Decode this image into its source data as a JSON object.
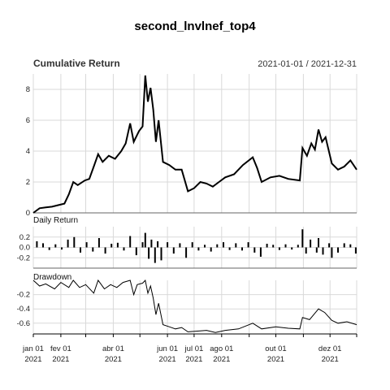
{
  "chart_data": {
    "type": "line",
    "title": "second_lnvlnef_top4",
    "date_range": "2021-01-01 / 2021-12-31",
    "panels": [
      {
        "name": "Cumulative Return",
        "type": "line",
        "ylim": [
          0,
          9
        ],
        "yticks": [
          0,
          2,
          4,
          6,
          8
        ],
        "points": [
          [
            "2021-01-01",
            0.0
          ],
          [
            "2021-01-08",
            0.3
          ],
          [
            "2021-01-15",
            0.35
          ],
          [
            "2021-01-22",
            0.4
          ],
          [
            "2021-01-29",
            0.5
          ],
          [
            "2021-02-05",
            0.6
          ],
          [
            "2021-02-10",
            1.2
          ],
          [
            "2021-02-15",
            2.0
          ],
          [
            "2021-02-20",
            1.8
          ],
          [
            "2021-02-28",
            2.1
          ],
          [
            "2021-03-05",
            2.2
          ],
          [
            "2021-03-10",
            3.0
          ],
          [
            "2021-03-15",
            3.8
          ],
          [
            "2021-03-20",
            3.3
          ],
          [
            "2021-03-27",
            3.7
          ],
          [
            "2021-04-03",
            3.5
          ],
          [
            "2021-04-10",
            4.0
          ],
          [
            "2021-04-15",
            4.5
          ],
          [
            "2021-04-20",
            5.8
          ],
          [
            "2021-04-24",
            4.6
          ],
          [
            "2021-04-30",
            5.3
          ],
          [
            "2021-05-04",
            5.6
          ],
          [
            "2021-05-07",
            8.9
          ],
          [
            "2021-05-10",
            7.2
          ],
          [
            "2021-05-13",
            8.1
          ],
          [
            "2021-05-16",
            6.7
          ],
          [
            "2021-05-19",
            4.6
          ],
          [
            "2021-05-22",
            6.0
          ],
          [
            "2021-05-27",
            3.3
          ],
          [
            "2021-06-03",
            3.1
          ],
          [
            "2021-06-10",
            2.8
          ],
          [
            "2021-06-17",
            2.8
          ],
          [
            "2021-06-24",
            1.4
          ],
          [
            "2021-07-01",
            1.6
          ],
          [
            "2021-07-08",
            2.0
          ],
          [
            "2021-07-15",
            1.9
          ],
          [
            "2021-07-22",
            1.7
          ],
          [
            "2021-07-29",
            2.0
          ],
          [
            "2021-08-05",
            2.3
          ],
          [
            "2021-08-15",
            2.5
          ],
          [
            "2021-08-25",
            3.1
          ],
          [
            "2021-09-05",
            3.6
          ],
          [
            "2021-09-10",
            2.9
          ],
          [
            "2021-09-15",
            2.0
          ],
          [
            "2021-09-25",
            2.3
          ],
          [
            "2021-10-05",
            2.4
          ],
          [
            "2021-10-15",
            2.2
          ],
          [
            "2021-10-28",
            2.1
          ],
          [
            "2021-10-31",
            4.2
          ],
          [
            "2021-11-05",
            3.7
          ],
          [
            "2021-11-10",
            4.5
          ],
          [
            "2021-11-14",
            4.1
          ],
          [
            "2021-11-18",
            5.4
          ],
          [
            "2021-11-22",
            4.6
          ],
          [
            "2021-11-26",
            4.9
          ],
          [
            "2021-12-03",
            3.2
          ],
          [
            "2021-12-10",
            2.8
          ],
          [
            "2021-12-17",
            3.0
          ],
          [
            "2021-12-24",
            3.4
          ],
          [
            "2021-12-31",
            2.8
          ]
        ]
      },
      {
        "name": "Daily Return",
        "type": "bar",
        "ylim": [
          -0.4,
          0.4
        ],
        "yticks": [
          0.2,
          0.0,
          -0.2
        ],
        "ytick_labels": [
          "0.2",
          "0.0",
          "-0.2"
        ],
        "points": [
          [
            "2021-01-05",
            0.12
          ],
          [
            "2021-01-12",
            0.08
          ],
          [
            "2021-01-19",
            -0.05
          ],
          [
            "2021-01-26",
            0.06
          ],
          [
            "2021-02-02",
            -0.04
          ],
          [
            "2021-02-09",
            0.15
          ],
          [
            "2021-02-16",
            0.2
          ],
          [
            "2021-02-23",
            -0.1
          ],
          [
            "2021-03-02",
            0.1
          ],
          [
            "2021-03-09",
            -0.08
          ],
          [
            "2021-03-16",
            0.18
          ],
          [
            "2021-03-23",
            -0.12
          ],
          [
            "2021-03-30",
            0.07
          ],
          [
            "2021-04-06",
            0.09
          ],
          [
            "2021-04-13",
            -0.06
          ],
          [
            "2021-04-20",
            0.22
          ],
          [
            "2021-04-27",
            -0.15
          ],
          [
            "2021-05-04",
            0.1
          ],
          [
            "2021-05-07",
            0.28
          ],
          [
            "2021-05-11",
            -0.22
          ],
          [
            "2021-05-14",
            0.15
          ],
          [
            "2021-05-18",
            -0.3
          ],
          [
            "2021-05-21",
            0.12
          ],
          [
            "2021-05-25",
            -0.25
          ],
          [
            "2021-06-01",
            0.1
          ],
          [
            "2021-06-08",
            -0.12
          ],
          [
            "2021-06-15",
            0.08
          ],
          [
            "2021-06-22",
            -0.2
          ],
          [
            "2021-06-29",
            0.1
          ],
          [
            "2021-07-06",
            -0.06
          ],
          [
            "2021-07-13",
            0.05
          ],
          [
            "2021-07-20",
            -0.08
          ],
          [
            "2021-07-27",
            0.06
          ],
          [
            "2021-08-03",
            0.1
          ],
          [
            "2021-08-10",
            -0.05
          ],
          [
            "2021-08-17",
            0.08
          ],
          [
            "2021-08-24",
            -0.06
          ],
          [
            "2021-08-31",
            0.1
          ],
          [
            "2021-09-07",
            -0.1
          ],
          [
            "2021-09-14",
            -0.18
          ],
          [
            "2021-09-21",
            0.07
          ],
          [
            "2021-09-28",
            0.05
          ],
          [
            "2021-10-05",
            -0.05
          ],
          [
            "2021-10-12",
            0.06
          ],
          [
            "2021-10-19",
            -0.04
          ],
          [
            "2021-10-26",
            0.05
          ],
          [
            "2021-10-31",
            0.35
          ],
          [
            "2021-11-04",
            -0.12
          ],
          [
            "2021-11-09",
            0.15
          ],
          [
            "2021-11-16",
            -0.1
          ],
          [
            "2021-11-18",
            0.18
          ],
          [
            "2021-11-23",
            -0.14
          ],
          [
            "2021-11-30",
            0.08
          ],
          [
            "2021-12-03",
            -0.2
          ],
          [
            "2021-12-10",
            -0.1
          ],
          [
            "2021-12-17",
            0.08
          ],
          [
            "2021-12-24",
            0.06
          ],
          [
            "2021-12-30",
            -0.12
          ]
        ]
      },
      {
        "name": "Drawdown",
        "type": "line",
        "ylim": [
          -0.75,
          0.0
        ],
        "yticks": [
          -0.2,
          -0.4,
          -0.6
        ],
        "points": [
          [
            "2021-01-01",
            0.0
          ],
          [
            "2021-01-08",
            -0.08
          ],
          [
            "2021-01-15",
            -0.05
          ],
          [
            "2021-01-25",
            -0.12
          ],
          [
            "2021-02-01",
            -0.03
          ],
          [
            "2021-02-10",
            -0.1
          ],
          [
            "2021-02-15",
            0.0
          ],
          [
            "2021-02-22",
            -0.1
          ],
          [
            "2021-03-01",
            -0.06
          ],
          [
            "2021-03-10",
            -0.18
          ],
          [
            "2021-03-15",
            0.0
          ],
          [
            "2021-03-22",
            -0.12
          ],
          [
            "2021-03-29",
            -0.06
          ],
          [
            "2021-04-05",
            -0.1
          ],
          [
            "2021-04-12",
            -0.03
          ],
          [
            "2021-04-20",
            0.0
          ],
          [
            "2021-04-24",
            -0.2
          ],
          [
            "2021-04-28",
            -0.06
          ],
          [
            "2021-05-04",
            -0.04
          ],
          [
            "2021-05-07",
            0.0
          ],
          [
            "2021-05-10",
            -0.18
          ],
          [
            "2021-05-13",
            -0.08
          ],
          [
            "2021-05-16",
            -0.25
          ],
          [
            "2021-05-19",
            -0.48
          ],
          [
            "2021-05-22",
            -0.32
          ],
          [
            "2021-05-27",
            -0.62
          ],
          [
            "2021-06-03",
            -0.65
          ],
          [
            "2021-06-10",
            -0.68
          ],
          [
            "2021-06-17",
            -0.66
          ],
          [
            "2021-06-24",
            -0.72
          ],
          [
            "2021-07-05",
            -0.71
          ],
          [
            "2021-07-15",
            -0.7
          ],
          [
            "2021-07-25",
            -0.73
          ],
          [
            "2021-08-05",
            -0.7
          ],
          [
            "2021-08-20",
            -0.68
          ],
          [
            "2021-09-05",
            -0.6
          ],
          [
            "2021-09-15",
            -0.68
          ],
          [
            "2021-10-01",
            -0.65
          ],
          [
            "2021-10-15",
            -0.67
          ],
          [
            "2021-10-28",
            -0.68
          ],
          [
            "2021-10-31",
            -0.52
          ],
          [
            "2021-11-08",
            -0.55
          ],
          [
            "2021-11-18",
            -0.4
          ],
          [
            "2021-11-25",
            -0.45
          ],
          [
            "2021-12-03",
            -0.56
          ],
          [
            "2021-12-10",
            -0.6
          ],
          [
            "2021-12-20",
            -0.58
          ],
          [
            "2021-12-31",
            -0.62
          ]
        ]
      }
    ],
    "x_ticks": [
      {
        "date": "2021-01-01",
        "label": "jan 01",
        "year": "2021"
      },
      {
        "date": "2021-02-01",
        "label": "fev 01",
        "year": "2021"
      },
      {
        "date": "2021-04-01",
        "label": "abr 01",
        "year": "2021"
      },
      {
        "date": "2021-06-01",
        "label": "jun 01",
        "year": "2021"
      },
      {
        "date": "2021-07-01",
        "label": "jul 01",
        "year": "2021"
      },
      {
        "date": "2021-08-01",
        "label": "ago 01",
        "year": "2021"
      },
      {
        "date": "2021-10-01",
        "label": "out 01",
        "year": "2021"
      },
      {
        "date": "2021-12-01",
        "label": "dez 01",
        "year": "2021"
      }
    ],
    "x_minor_ticks": [
      "2021-03-01",
      "2021-05-01",
      "2021-09-01",
      "2021-11-01",
      "2021-12-31"
    ],
    "colors": {
      "line": "#000000",
      "grid": "#d9d9d9"
    },
    "grid": true
  }
}
